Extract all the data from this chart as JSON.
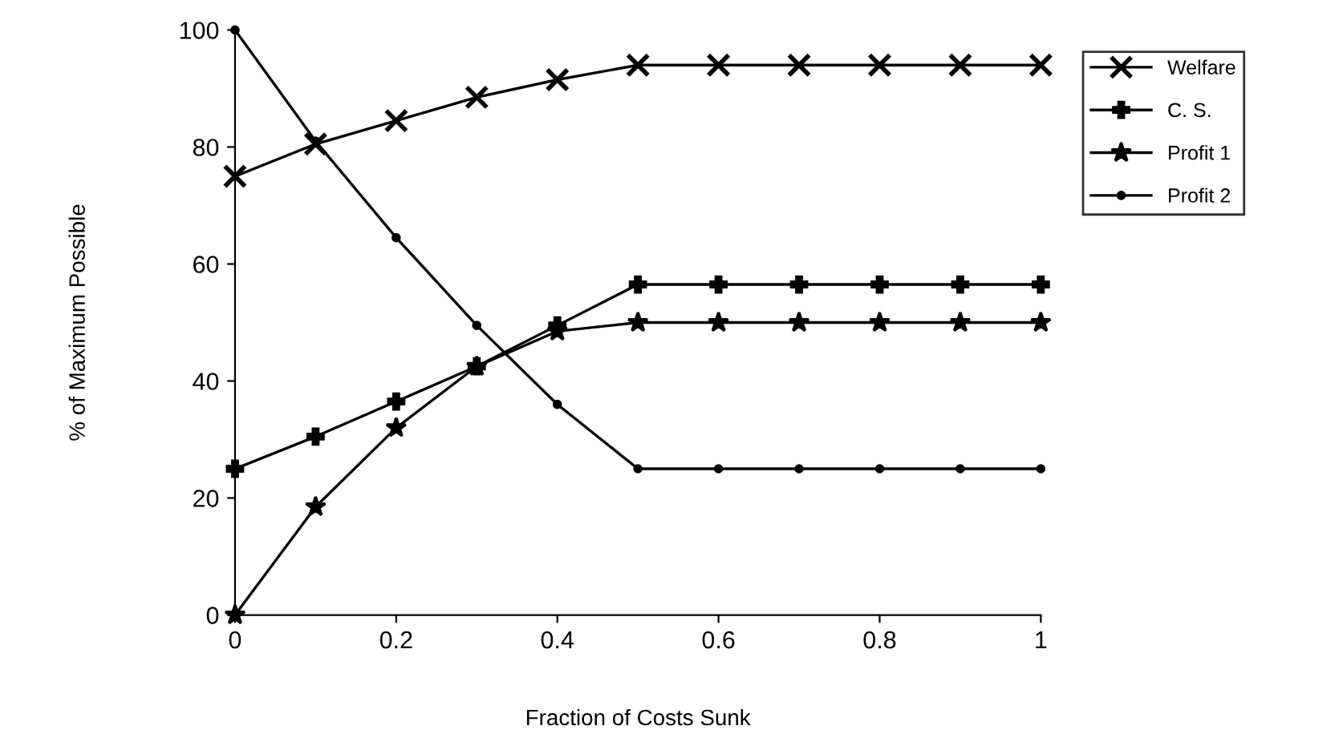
{
  "chart_data": {
    "type": "line",
    "xlabel": "Fraction of Costs Sunk",
    "ylabel": "% of Maximum Possible",
    "x": [
      0,
      0.1,
      0.2,
      0.3,
      0.4,
      0.5,
      0.6,
      0.7,
      0.8,
      0.9,
      1
    ],
    "series": [
      {
        "name": "Welfare",
        "color": "#000000",
        "marker": "cross",
        "values": [
          75,
          80.5,
          84.5,
          88.5,
          91.5,
          94,
          94,
          94,
          94,
          94,
          94
        ]
      },
      {
        "name": "C. S.",
        "color": "#000000",
        "marker": "plus",
        "values": [
          25,
          30.5,
          36.5,
          42.5,
          49.5,
          56.5,
          56.5,
          56.5,
          56.5,
          56.5,
          56.5
        ]
      },
      {
        "name": "Profit 1",
        "color": "#000000",
        "marker": "star",
        "values": [
          0,
          18.5,
          32,
          42.5,
          48.5,
          50,
          50,
          50,
          50,
          50,
          50
        ]
      },
      {
        "name": "Profit 2",
        "color": "#000000",
        "marker": "circle",
        "values": [
          100,
          81,
          64.5,
          49.5,
          36,
          25,
          25,
          25,
          25,
          25,
          25
        ]
      }
    ],
    "xlim": [
      0,
      1
    ],
    "ylim": [
      0,
      100
    ],
    "xticks": [
      0,
      {
        "value": 0.2,
        "label": "0.2"
      },
      {
        "value": 0.4,
        "label": "0.4"
      },
      {
        "value": 0.6,
        "label": "0.6"
      },
      {
        "value": 0.8,
        "label": "0.8"
      },
      1
    ],
    "yticks": [
      0,
      20,
      40,
      60,
      80,
      100
    ],
    "grid": false,
    "legend": "right",
    "line_style": "solid"
  }
}
